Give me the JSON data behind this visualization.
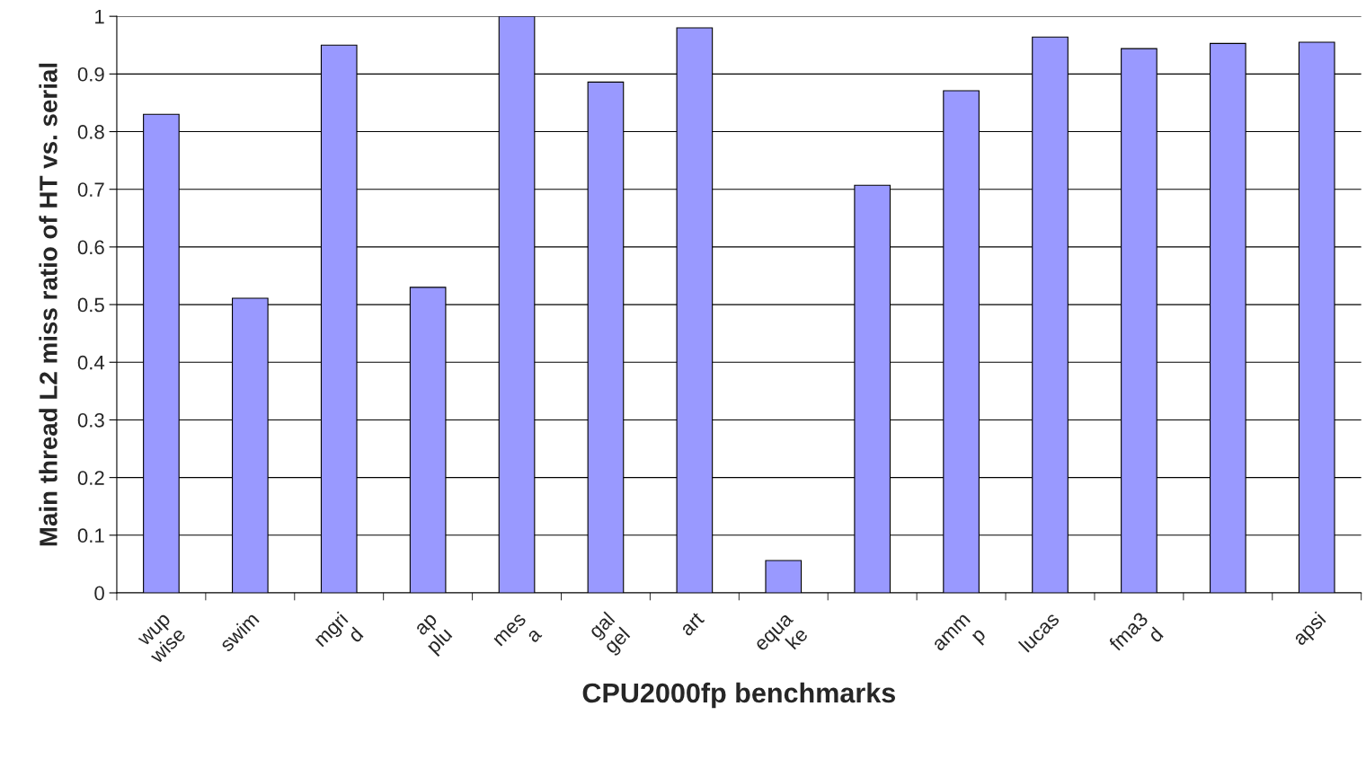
{
  "chart_data": {
    "type": "bar",
    "xlabel": "CPU2000fp benchmarks",
    "ylabel": "Main thread L2 miss ratio of HT vs. serial",
    "categories": [
      "wup\nwise",
      "swim",
      "mgri\nd",
      "ap\nplu",
      "mes\na",
      "gal\ngel",
      "art",
      "equa\nke",
      null,
      "amm\np",
      "lucas",
      "fma3\nd",
      null,
      "apsi"
    ],
    "values": [
      0.83,
      0.511,
      0.95,
      0.53,
      1.0,
      0.886,
      0.98,
      0.056,
      0.707,
      0.871,
      0.964,
      0.944,
      0.953,
      0.955
    ],
    "color": "#9999ff",
    "ylim": [
      0,
      1
    ],
    "yticks": [
      0,
      0.1,
      0.2,
      0.3,
      0.4,
      0.5,
      0.6,
      0.7,
      0.8,
      0.9,
      1
    ],
    "grid": "y",
    "legend": false
  }
}
